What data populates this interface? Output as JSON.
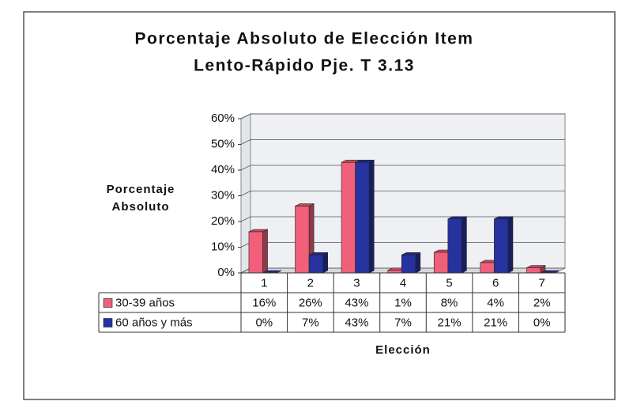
{
  "chart_data": {
    "type": "bar",
    "title": [
      "Porcentaje Absoluto de Elección Item",
      "Lento-Rápido Pje. T 3.13"
    ],
    "y_label": [
      "Porcentaje",
      "Absoluto"
    ],
    "x_label": "Elección",
    "categories": [
      "1",
      "2",
      "3",
      "4",
      "5",
      "6",
      "7"
    ],
    "series": [
      {
        "name": "30-39 años",
        "color": "#f0607a",
        "values": [
          16,
          26,
          43,
          1,
          8,
          4,
          2
        ],
        "value_labels": [
          "16%",
          "26%",
          "43%",
          "1%",
          "8%",
          "4%",
          "2%"
        ]
      },
      {
        "name": "60 años y más",
        "color": "#26339f",
        "values": [
          0,
          7,
          43,
          7,
          21,
          21,
          0
        ],
        "value_labels": [
          "0%",
          "7%",
          "43%",
          "7%",
          "21%",
          "21%",
          "0%"
        ]
      }
    ],
    "ylim": [
      0,
      60
    ],
    "yticks": [
      {
        "value": 0,
        "label": "0%"
      },
      {
        "value": 10,
        "label": "10%"
      },
      {
        "value": 20,
        "label": "20%"
      },
      {
        "value": 30,
        "label": "30%"
      },
      {
        "value": 40,
        "label": "40%"
      },
      {
        "value": 50,
        "label": "50%"
      },
      {
        "value": 60,
        "label": "60%"
      }
    ],
    "grid": true
  }
}
